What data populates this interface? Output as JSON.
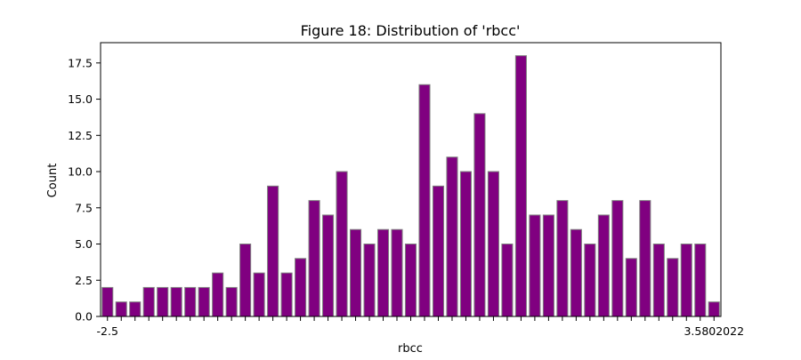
{
  "chart_data": {
    "type": "bar",
    "title": "Figure 18: Distribution of 'rbcc'",
    "xlabel": "rbcc",
    "ylabel": "Count",
    "ylim": [
      0,
      18.9
    ],
    "yticks": [
      "0.0",
      "2.5",
      "5.0",
      "7.5",
      "10.0",
      "12.5",
      "15.0",
      "17.5"
    ],
    "ytick_values": [
      0,
      2.5,
      5,
      7.5,
      10,
      12.5,
      15,
      17.5
    ],
    "x_first_tick_label": "-2.5",
    "x_last_tick_label": "3.5802022",
    "values": [
      2,
      1,
      1,
      2,
      2,
      2,
      2,
      2,
      3,
      2,
      5,
      3,
      9,
      3,
      4,
      8,
      7,
      10,
      6,
      5,
      6,
      6,
      5,
      16,
      9,
      11,
      10,
      14,
      10,
      5,
      18,
      7,
      7,
      8,
      6,
      5,
      7,
      8,
      4,
      8,
      5,
      4,
      5,
      5,
      1
    ],
    "bar_color": "#800080",
    "bar_edge_color": "#808080",
    "grid": false
  }
}
